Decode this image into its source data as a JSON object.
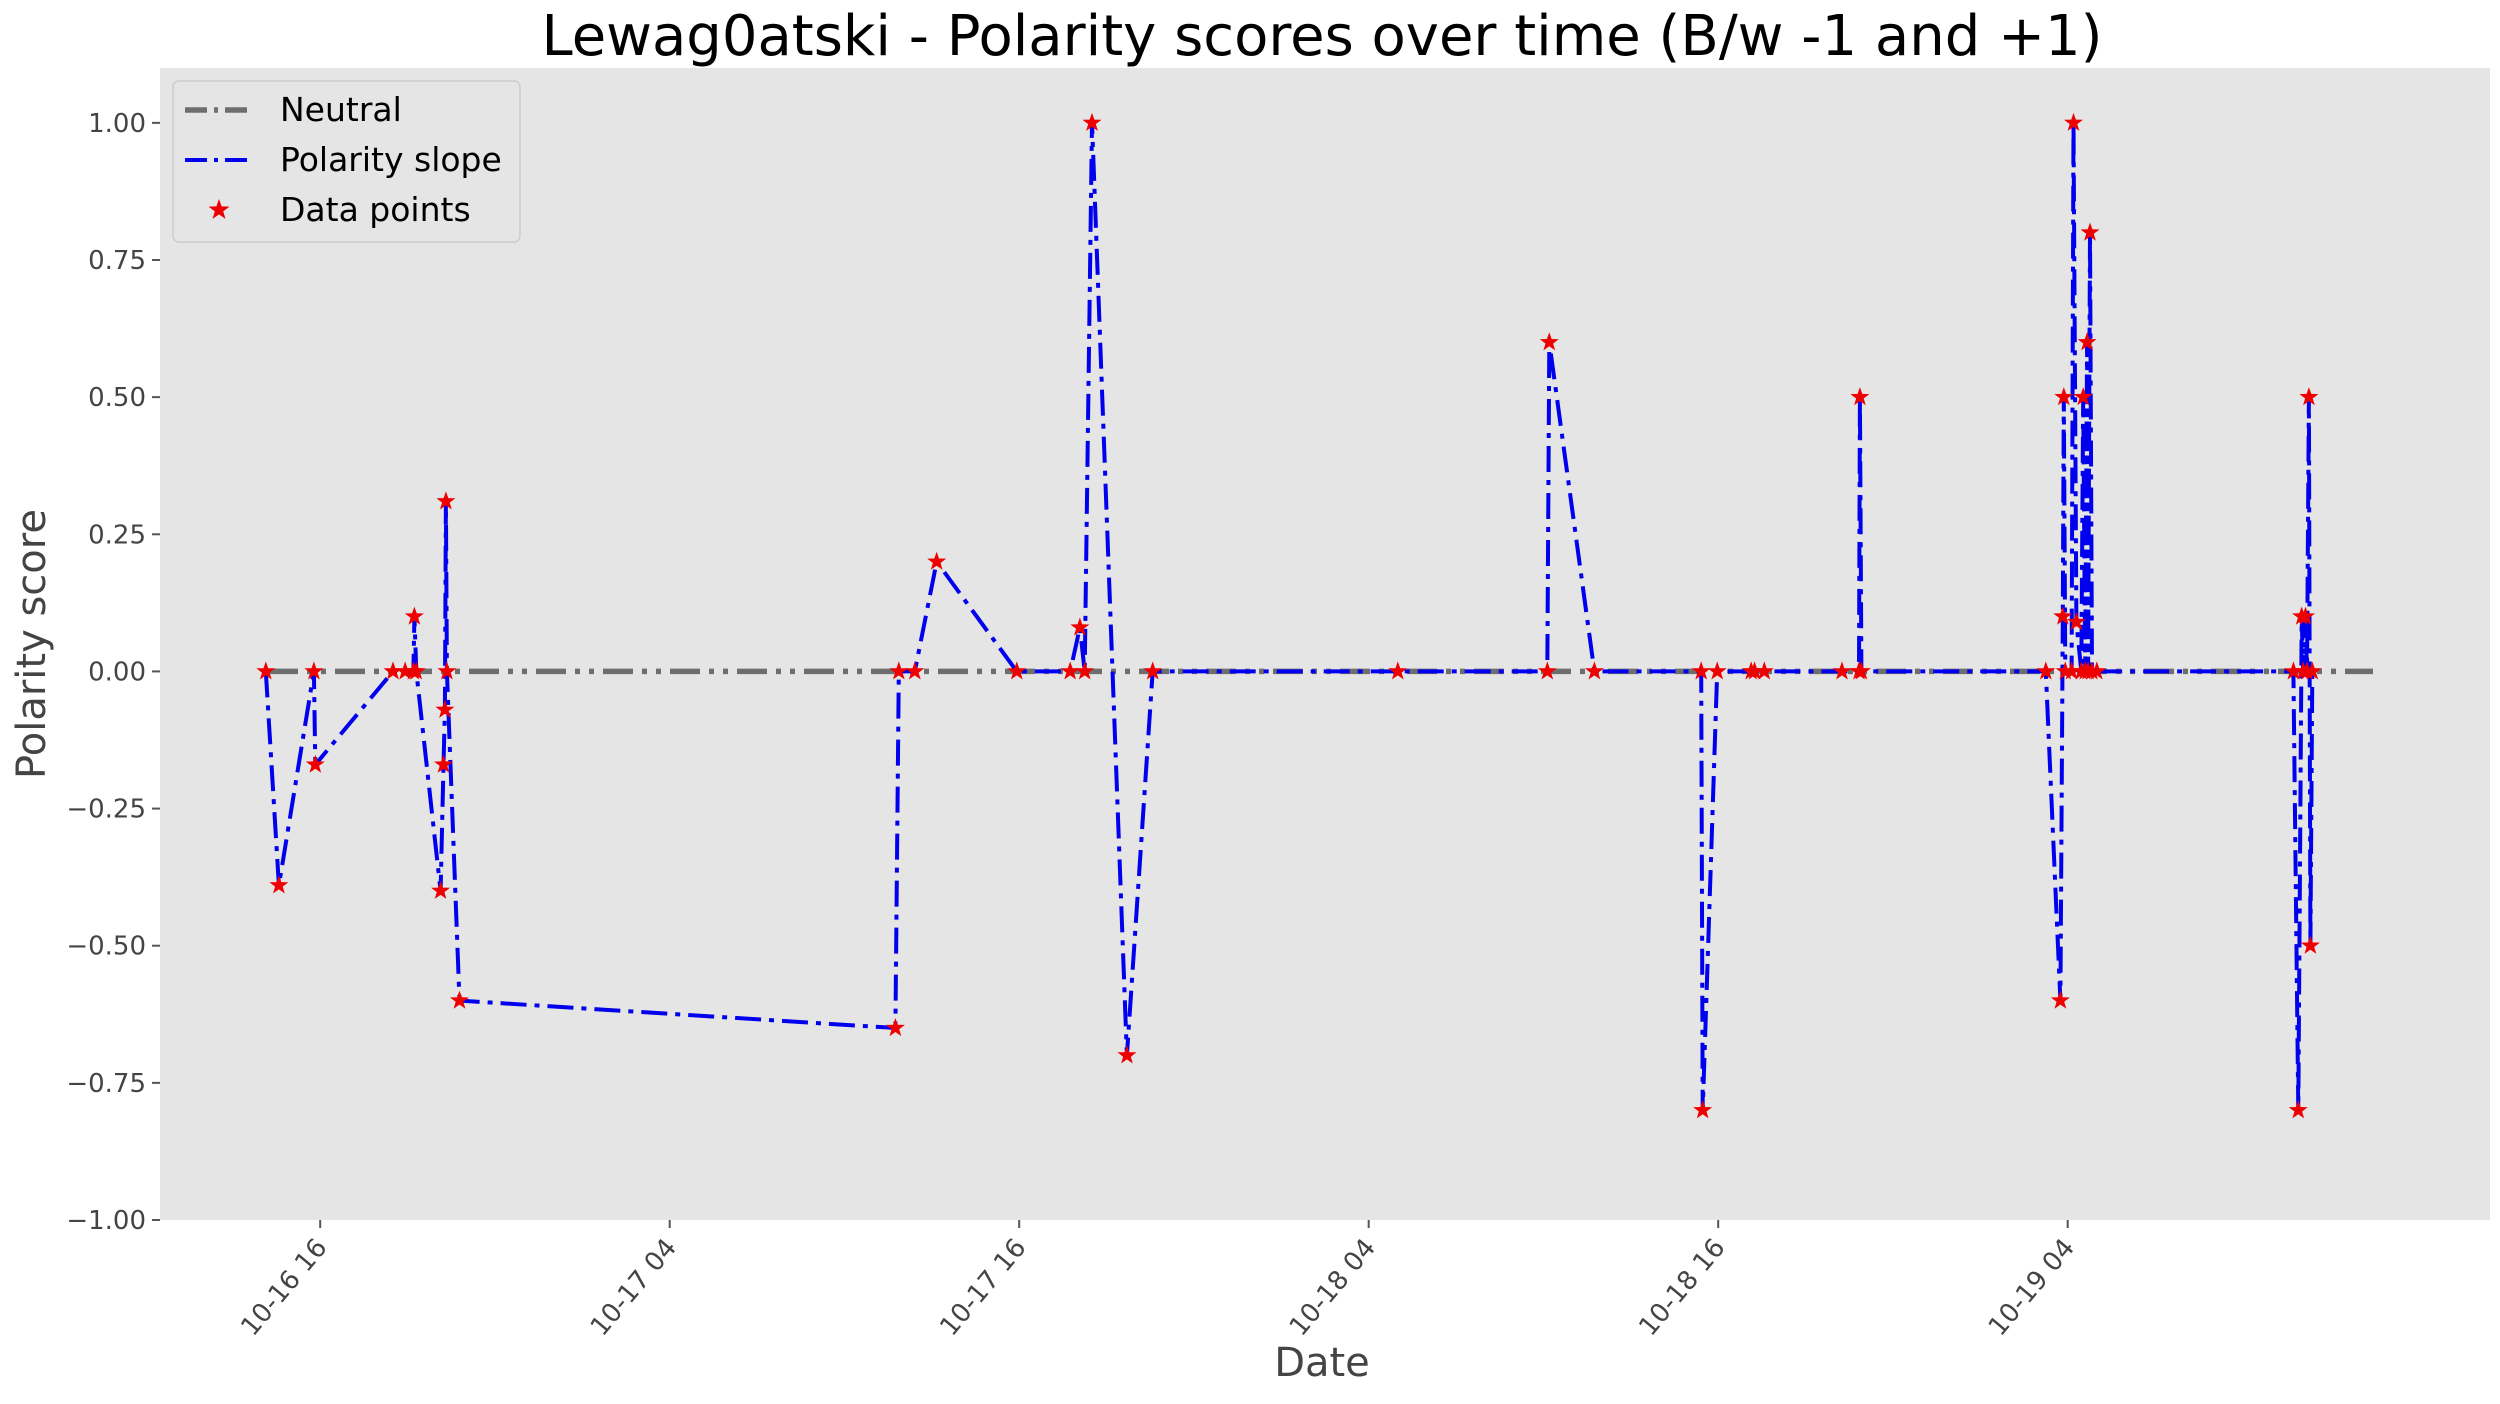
{
  "chart_data": {
    "type": "line",
    "title": "Lewag0atski - Polarity scores over time (B/w -1 and +1)",
    "xlabel": "Date",
    "ylabel": "Polarity score",
    "ylim": [
      -1.0,
      1.1
    ],
    "xlim": [
      "2019-10-16 10:30",
      "2019-10-19 18:30"
    ],
    "grid": false,
    "legend_position": "top-left",
    "x_ticks": [
      {
        "x": "2019-10-16 16:00",
        "label": "10-16 16"
      },
      {
        "x": "2019-10-17 04:00",
        "label": "10-17 04"
      },
      {
        "x": "2019-10-17 16:00",
        "label": "10-17 16"
      },
      {
        "x": "2019-10-18 04:00",
        "label": "10-18 04"
      },
      {
        "x": "2019-10-18 16:00",
        "label": "10-18 16"
      },
      {
        "x": "2019-10-19 04:00",
        "label": "10-19 04"
      }
    ],
    "y_ticks": [
      {
        "y": -1.0,
        "label": "−1.00"
      },
      {
        "y": -0.75,
        "label": "−0.75"
      },
      {
        "y": -0.5,
        "label": "−0.50"
      },
      {
        "y": -0.25,
        "label": "−0.25"
      },
      {
        "y": 0.0,
        "label": "0.00"
      },
      {
        "y": 0.25,
        "label": "0.25"
      },
      {
        "y": 0.5,
        "label": "0.50"
      },
      {
        "y": 0.75,
        "label": "0.75"
      },
      {
        "y": 1.0,
        "label": "1.00"
      }
    ],
    "legend": {
      "neutral_label": "Neutral",
      "slope_label": "Polarity slope",
      "points_label": "Data points"
    },
    "colors": {
      "neutral": "#6e6e6e",
      "slope": "#0000ee",
      "points": "#ee0000",
      "plot_bg": "#e5e5e5"
    },
    "neutral_y": 0,
    "series": [
      {
        "name": "Polarity slope",
        "points": [
          {
            "x": "2019-10-16 14:08",
            "y": 0.0
          },
          {
            "x": "2019-10-16 14:35",
            "y": -0.39
          },
          {
            "x": "2019-10-16 15:47",
            "y": 0.0
          },
          {
            "x": "2019-10-16 15:50",
            "y": -0.17
          },
          {
            "x": "2019-10-16 18:30",
            "y": 0.0
          },
          {
            "x": "2019-10-16 18:55",
            "y": 0.0
          },
          {
            "x": "2019-10-16 19:12",
            "y": 0.0
          },
          {
            "x": "2019-10-16 19:14",
            "y": 0.1
          },
          {
            "x": "2019-10-16 19:18",
            "y": 0.0
          },
          {
            "x": "2019-10-16 20:08",
            "y": -0.4
          },
          {
            "x": "2019-10-16 20:14",
            "y": -0.17
          },
          {
            "x": "2019-10-16 20:17",
            "y": -0.07
          },
          {
            "x": "2019-10-16 20:19",
            "y": 0.31
          },
          {
            "x": "2019-10-16 20:21",
            "y": 0.0
          },
          {
            "x": "2019-10-16 20:47",
            "y": -0.6
          },
          {
            "x": "2019-10-17 11:45",
            "y": -0.65
          },
          {
            "x": "2019-10-17 11:52",
            "y": 0.0
          },
          {
            "x": "2019-10-17 12:25",
            "y": 0.0
          },
          {
            "x": "2019-10-17 13:10",
            "y": 0.2
          },
          {
            "x": "2019-10-17 15:55",
            "y": 0.0
          },
          {
            "x": "2019-10-17 17:45",
            "y": 0.0
          },
          {
            "x": "2019-10-17 18:05",
            "y": 0.08
          },
          {
            "x": "2019-10-17 18:15",
            "y": 0.0
          },
          {
            "x": "2019-10-17 18:30",
            "y": 1.0
          },
          {
            "x": "2019-10-17 19:42",
            "y": -0.7
          },
          {
            "x": "2019-10-17 20:35",
            "y": 0.0
          },
          {
            "x": "2019-10-18 05:00",
            "y": 0.0
          },
          {
            "x": "2019-10-18 10:08",
            "y": 0.0
          },
          {
            "x": "2019-10-18 10:12",
            "y": 0.6
          },
          {
            "x": "2019-10-18 11:45",
            "y": 0.0
          },
          {
            "x": "2019-10-18 15:25",
            "y": 0.0
          },
          {
            "x": "2019-10-18 15:28",
            "y": -0.8
          },
          {
            "x": "2019-10-18 15:58",
            "y": 0.0
          },
          {
            "x": "2019-10-18 17:08",
            "y": 0.0
          },
          {
            "x": "2019-10-18 17:15",
            "y": 0.0
          },
          {
            "x": "2019-10-18 17:35",
            "y": 0.0
          },
          {
            "x": "2019-10-18 20:15",
            "y": 0.0
          },
          {
            "x": "2019-10-18 20:50",
            "y": 0.0
          },
          {
            "x": "2019-10-18 20:52",
            "y": 0.5
          },
          {
            "x": "2019-10-18 20:55",
            "y": 0.0
          },
          {
            "x": "2019-10-19 03:15",
            "y": 0.0
          },
          {
            "x": "2019-10-19 03:45",
            "y": -0.6
          },
          {
            "x": "2019-10-19 03:50",
            "y": 0.1
          },
          {
            "x": "2019-10-19 03:52",
            "y": 0.5
          },
          {
            "x": "2019-10-19 03:55",
            "y": 0.0
          },
          {
            "x": "2019-10-19 04:08",
            "y": 0.0
          },
          {
            "x": "2019-10-19 04:12",
            "y": 1.0
          },
          {
            "x": "2019-10-19 04:18",
            "y": 0.09
          },
          {
            "x": "2019-10-19 04:28",
            "y": 0.0
          },
          {
            "x": "2019-10-19 04:32",
            "y": 0.5
          },
          {
            "x": "2019-10-19 04:36",
            "y": 0.0
          },
          {
            "x": "2019-10-19 04:40",
            "y": 0.6
          },
          {
            "x": "2019-10-19 04:42",
            "y": 0.0
          },
          {
            "x": "2019-10-19 04:46",
            "y": 0.8
          },
          {
            "x": "2019-10-19 04:50",
            "y": 0.0
          },
          {
            "x": "2019-10-19 05:00",
            "y": 0.0
          },
          {
            "x": "2019-10-19 11:45",
            "y": 0.0
          },
          {
            "x": "2019-10-19 11:55",
            "y": -0.8
          },
          {
            "x": "2019-10-19 12:02",
            "y": 0.1
          },
          {
            "x": "2019-10-19 12:05",
            "y": 0.0
          },
          {
            "x": "2019-10-19 12:10",
            "y": 0.1
          },
          {
            "x": "2019-10-19 12:13",
            "y": 0.0
          },
          {
            "x": "2019-10-19 12:17",
            "y": 0.5
          },
          {
            "x": "2019-10-19 12:20",
            "y": -0.5
          },
          {
            "x": "2019-10-19 12:24",
            "y": 0.0
          }
        ]
      }
    ]
  }
}
